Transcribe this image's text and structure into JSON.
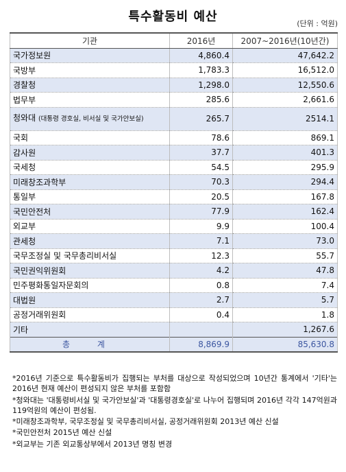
{
  "title": "특수활동비 예산",
  "unit": "(단위 : 억원)",
  "headers": [
    "기관",
    "2016년",
    "2007~2016년(10년간)"
  ],
  "rows": [
    {
      "name": "국가정보원",
      "note": "",
      "y2016": "4,860.4",
      "total10": "47,642.2"
    },
    {
      "name": "국방부",
      "note": "",
      "y2016": "1,783.3",
      "total10": "16,512.0"
    },
    {
      "name": "경찰청",
      "note": "",
      "y2016": "1,298.0",
      "total10": "12,550.6"
    },
    {
      "name": "법무부",
      "note": "",
      "y2016": "285.6",
      "total10": "2,661.6"
    },
    {
      "name": "청와대",
      "note": "(대통령 경호실, 비서실 및 국가안보실)",
      "y2016": "265.7",
      "total10": "2514.1"
    },
    {
      "name": "국회",
      "note": "",
      "y2016": "78.6",
      "total10": "869.1"
    },
    {
      "name": "감사원",
      "note": "",
      "y2016": "37.7",
      "total10": "401.3"
    },
    {
      "name": "국세청",
      "note": "",
      "y2016": "54.5",
      "total10": "295.9"
    },
    {
      "name": "미래창조과학부",
      "note": "",
      "y2016": "70.3",
      "total10": "294.4"
    },
    {
      "name": "통일부",
      "note": "",
      "y2016": "20.5",
      "total10": "167.8"
    },
    {
      "name": "국민안전처",
      "note": "",
      "y2016": "77.9",
      "total10": "162.4"
    },
    {
      "name": "외교부",
      "note": "",
      "y2016": "9.9",
      "total10": "100.4"
    },
    {
      "name": "관세청",
      "note": "",
      "y2016": "7.1",
      "total10": "73.0"
    },
    {
      "name": "국무조정실 및 국무총리비서실",
      "note": "",
      "y2016": "12.3",
      "total10": "55.7"
    },
    {
      "name": "국민권익위원회",
      "note": "",
      "y2016": "4.2",
      "total10": "47.8"
    },
    {
      "name": "민주평화통일자문회의",
      "note": "",
      "y2016": "0.8",
      "total10": "7.4"
    },
    {
      "name": "대법원",
      "note": "",
      "y2016": "2.7",
      "total10": "5.7"
    },
    {
      "name": "공정거래위원회",
      "note": "",
      "y2016": "0.4",
      "total10": "1.8"
    },
    {
      "name": "기타",
      "note": "",
      "y2016": "",
      "total10": "1,267.6"
    }
  ],
  "total": {
    "label": "총 계",
    "y2016": "8,869.9",
    "total10": "85,630.8"
  },
  "notes": [
    "*2016년 기준으로 특수활동비가 집행되는 부처를 대상으로 작성되었으며 10년간 통계에서 '기타'는 2016년 현재 예산이 편성되지 않은 부처를 포함함",
    "*청와대는 '대통령비서실 및 국가안보실'과 '대통령경호실'로 나누어 집행되며 2016년 각각 147억원과 119억원의 예산이 편성됨.",
    "*미래창조과학부, 국무조정실 및 국무총리비서실, 공정거래위원회 2013년 예산 신설",
    "*국민안전처 2015년 예산 신설",
    "*외교부는 기존 외교통상부에서 2013년 명칭 변경"
  ]
}
